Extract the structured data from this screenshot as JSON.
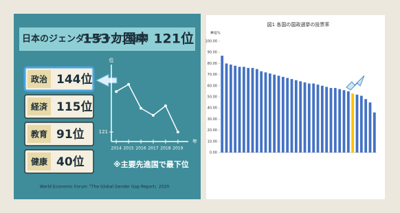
{
  "infographic": {
    "title": "日本のジェンダーギャップ指数",
    "title_rank": "153カ国中 121位",
    "rankings": [
      {
        "field": "政治",
        "rank": "144位"
      },
      {
        "field": "経済",
        "rank": "115位"
      },
      {
        "field": "教育",
        "rank": "91位"
      },
      {
        "field": "健康",
        "rank": "40位"
      }
    ],
    "note": "※主要先進国で最下位",
    "source": "World Economic Forum「The Global Gender Gap Report」2020"
  },
  "chart_data": [
    {
      "type": "line",
      "x": [
        2014,
        2015,
        2016,
        2017,
        2018,
        2019
      ],
      "values": [
        104,
        101,
        111,
        114,
        110,
        121
      ],
      "color": "#ffffff",
      "xlim": [
        2013.6,
        2019.4
      ],
      "xticks": [
        2014,
        2015,
        2016,
        2017,
        2018,
        2019
      ],
      "ylim": [
        95,
        125
      ],
      "y_inverted": true,
      "yticks": [
        121
      ],
      "y_label": "位",
      "x_label": "年"
    },
    {
      "type": "bar",
      "title": "図1 各国の国政選挙の投票率",
      "y_label": "単位%",
      "categories": [
        null,
        null,
        null,
        null,
        null,
        null,
        null,
        null,
        null,
        null,
        null,
        null,
        null,
        null,
        null,
        null,
        null,
        null,
        null,
        null,
        null,
        null,
        null,
        null,
        null,
        null,
        null,
        null,
        null,
        null,
        null,
        null,
        null,
        null,
        null,
        null
      ],
      "values": [
        87,
        80,
        79,
        78,
        77,
        77,
        76,
        76,
        75,
        73,
        72,
        71,
        70,
        69,
        68,
        67,
        66,
        65,
        64,
        63,
        62,
        62,
        61,
        60,
        59,
        58,
        58,
        57,
        56,
        55,
        53,
        52,
        51,
        48,
        45,
        36
      ],
      "colors": [
        "#4472c4",
        "#4472c4",
        "#4472c4",
        "#4472c4",
        "#4472c4",
        "#4472c4",
        "#4472c4",
        "#4472c4",
        "#4472c4",
        "#4472c4",
        "#4472c4",
        "#4472c4",
        "#4472c4",
        "#4472c4",
        "#4472c4",
        "#4472c4",
        "#4472c4",
        "#4472c4",
        "#4472c4",
        "#4472c4",
        "#4472c4",
        "#4472c4",
        "#4472c4",
        "#4472c4",
        "#4472c4",
        "#4472c4",
        "#4472c4",
        "#4472c4",
        "#4472c4",
        "#4472c4",
        "#ffc000",
        "#4472c4",
        "#4472c4",
        "#4472c4",
        "#4472c4",
        "#4472c4"
      ],
      "ylim": [
        0,
        100
      ],
      "yticks": [
        {
          "value": 0,
          "label": "0.00"
        },
        {
          "value": 10,
          "label": "10.00"
        },
        {
          "value": 20,
          "label": "20.00"
        },
        {
          "value": 30,
          "label": "30.00"
        },
        {
          "value": 40,
          "label": "40.00"
        },
        {
          "value": 50,
          "label": "50.00"
        },
        {
          "value": 60,
          "label": "60.00"
        },
        {
          "value": 70,
          "label": "70.00"
        },
        {
          "value": 80,
          "label": "80.00"
        },
        {
          "value": 90,
          "label": "90.00"
        },
        {
          "value": 100,
          "label": "100.00"
        }
      ],
      "grid": false
    }
  ]
}
